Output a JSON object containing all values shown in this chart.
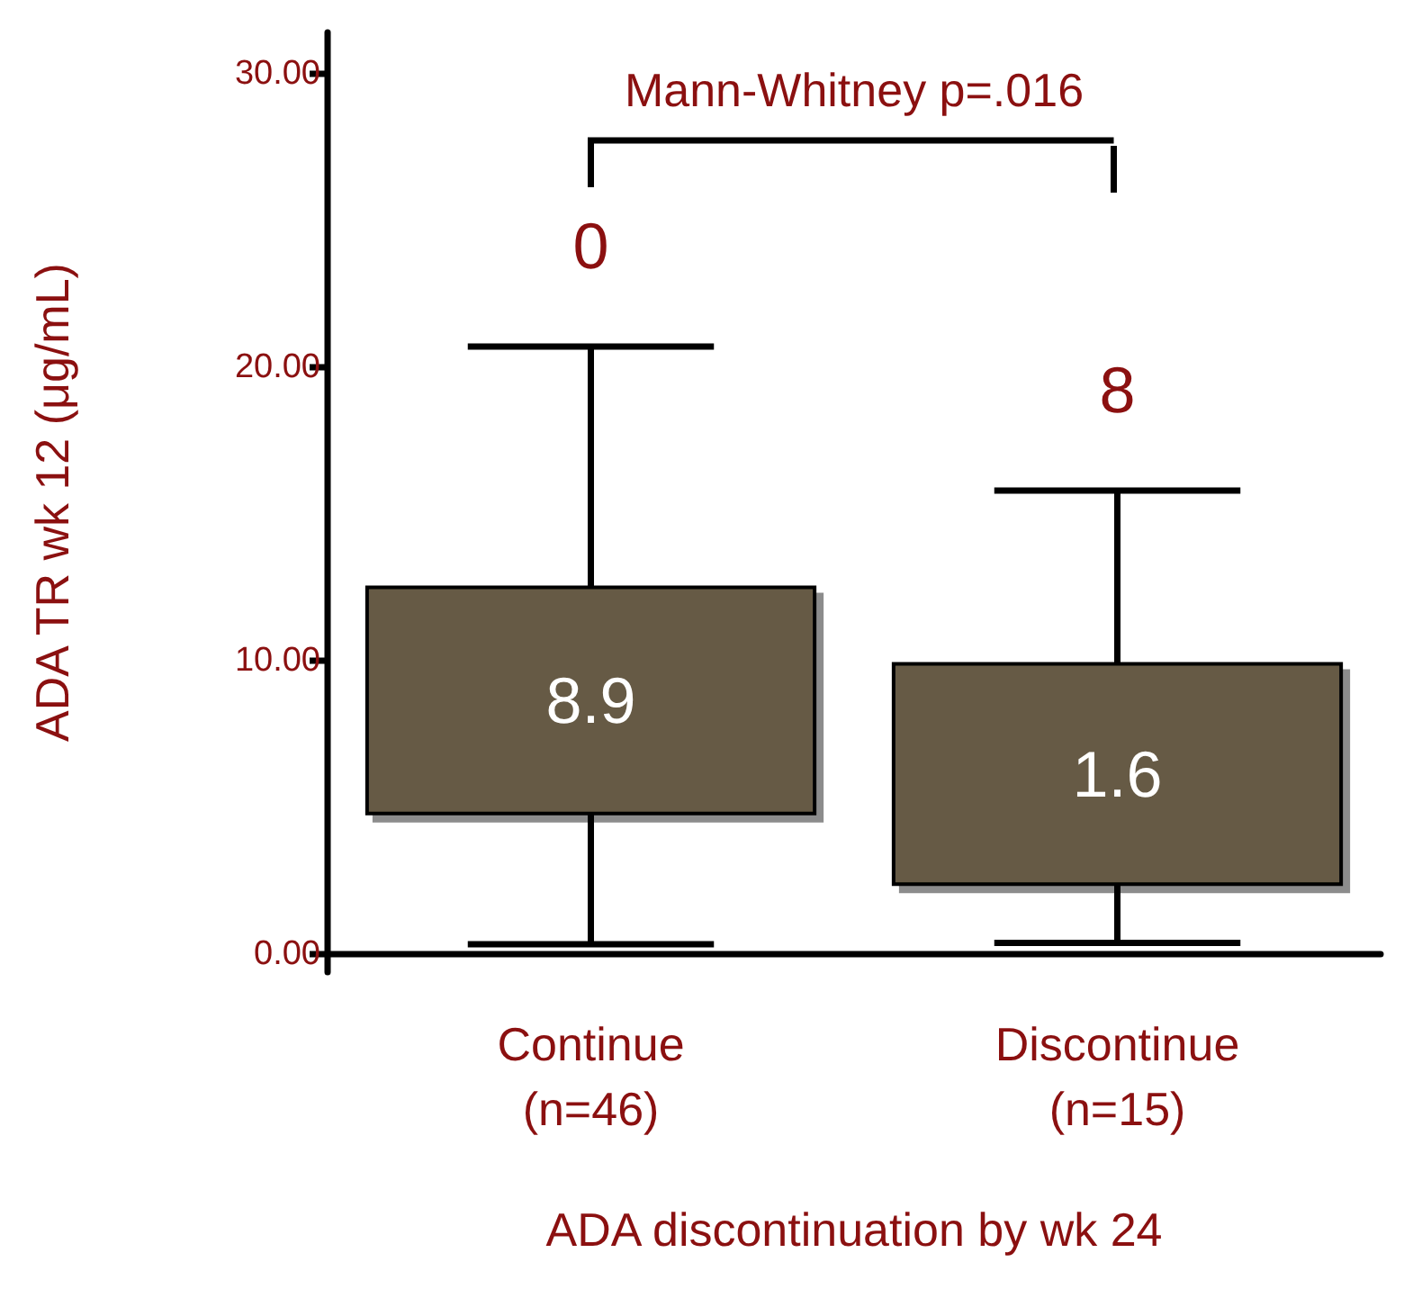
{
  "chart_data": {
    "type": "box",
    "categories": [
      "Continue\n(n=46)",
      "Discontinue\n(n=15)"
    ],
    "boxes": [
      {
        "low": 0.35,
        "q1": 4.8,
        "q3": 12.5,
        "high": 20.7
      },
      {
        "low": 0.4,
        "q1": 2.4,
        "q3": 9.9,
        "high": 15.8
      }
    ],
    "color": "#665a45",
    "ylabel": "ADA TR wk 12 (μg/mL)",
    "xlabel": "ADA discontinuation by wk 24",
    "ylim": [
      -0.6,
      31.4
    ],
    "yticks": [
      {
        "value": 0,
        "label": "0.00"
      },
      {
        "value": 10,
        "label": "10.00"
      },
      {
        "value": 20,
        "label": "20.00"
      },
      {
        "value": 30,
        "label": "30.00"
      }
    ],
    "grid": false,
    "annotations": [
      "Mann-Whitney p=.016",
      "0",
      "8",
      "8.9",
      "1.6"
    ]
  }
}
